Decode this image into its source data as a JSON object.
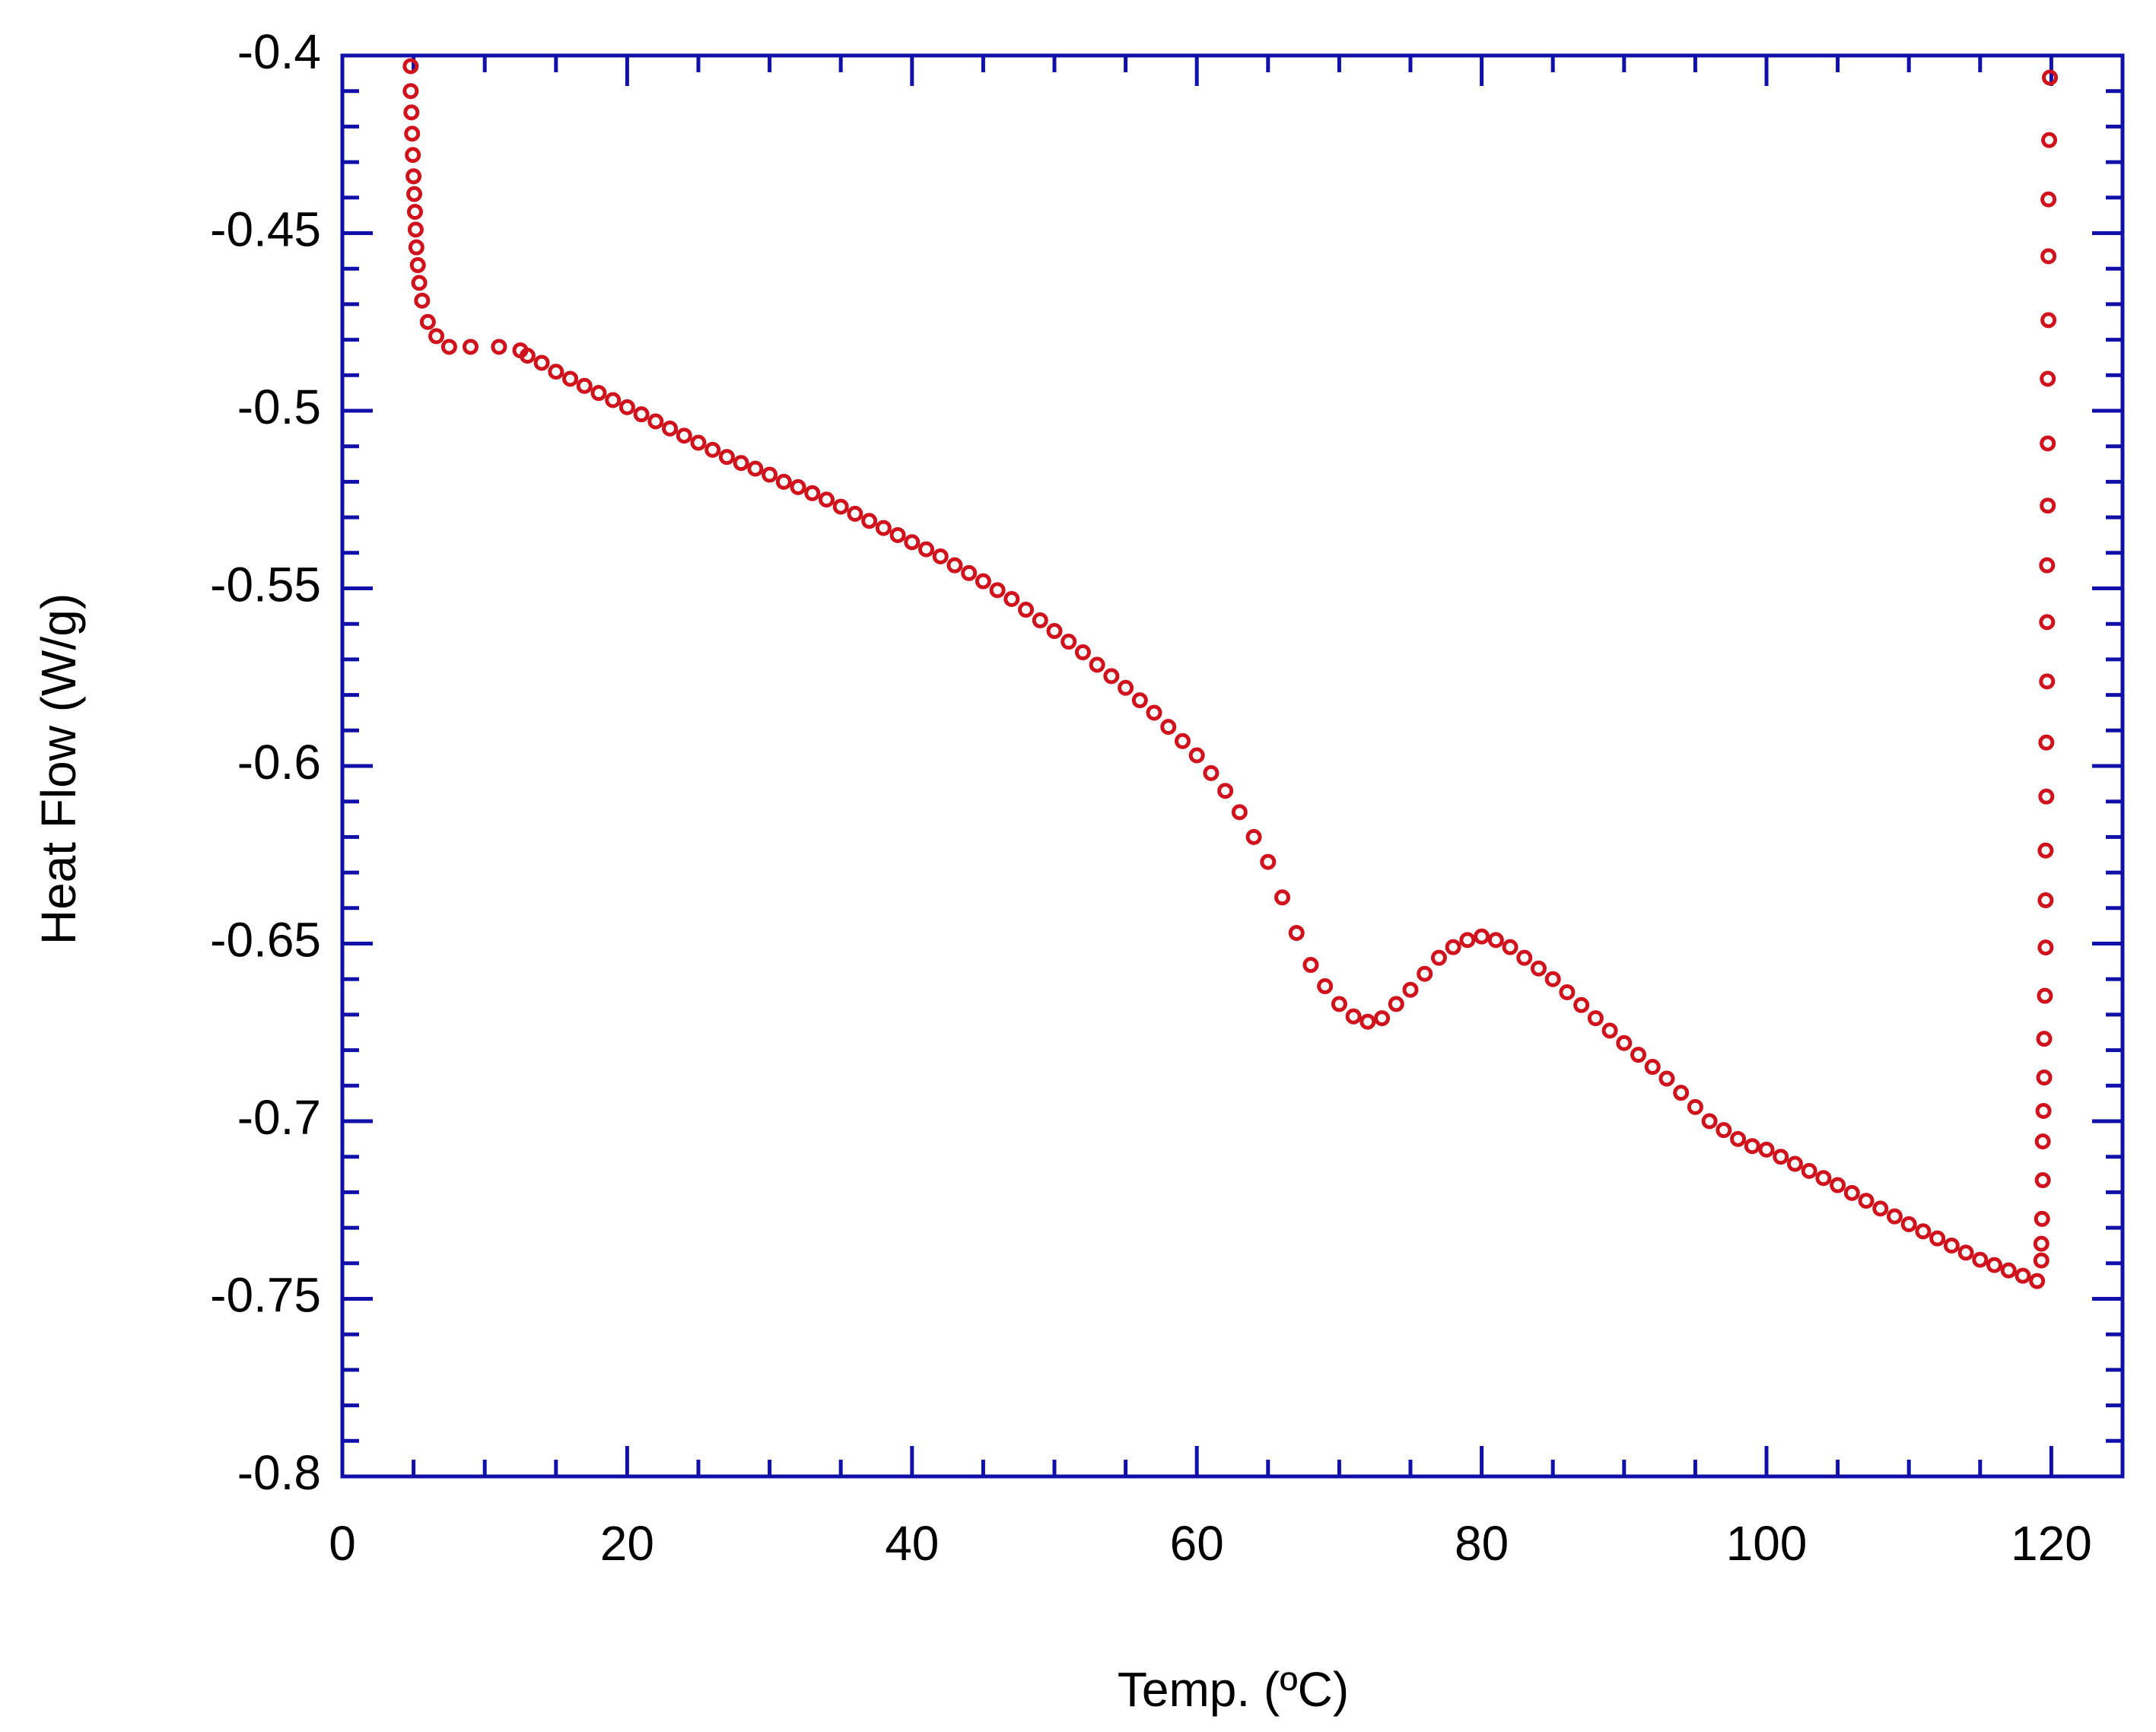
{
  "chart_data": {
    "type": "scatter",
    "xlabel": "Temp. (ºC)",
    "ylabel": "Heat Flow (W/g)",
    "xlim": [
      0,
      125
    ],
    "xticks": [
      0,
      20,
      40,
      60,
      80,
      100,
      120
    ],
    "ylim": [
      -0.8,
      -0.4
    ],
    "yticks": [
      -0.8,
      -0.75,
      -0.7,
      -0.65,
      -0.6,
      -0.55,
      -0.5,
      -0.45,
      -0.4
    ],
    "axis_color": "#1010a8",
    "series": [
      {
        "color": "#d0121c",
        "x": [
          4.8,
          4.8,
          4.85,
          4.9,
          4.95,
          5.0,
          5.05,
          5.1,
          5.15,
          5.2,
          5.3,
          5.4,
          5.6,
          6,
          6.6,
          7.5,
          9,
          11,
          12.5,
          13,
          14,
          15,
          16,
          17,
          18,
          19,
          20,
          21,
          22,
          23,
          24,
          25,
          26,
          27,
          28,
          29,
          30,
          31,
          32,
          33,
          34,
          35,
          36,
          37,
          38,
          39,
          40,
          41,
          42,
          43,
          44,
          45,
          46,
          47,
          48,
          49,
          50,
          51,
          52,
          53,
          54,
          55,
          56,
          57,
          58,
          59,
          60,
          61,
          62,
          63,
          64,
          65,
          66,
          67,
          68,
          69,
          70,
          71,
          72,
          73,
          74,
          75,
          76,
          77,
          78,
          79,
          80,
          81,
          82,
          83,
          84,
          85,
          86,
          87,
          88,
          89,
          90,
          91,
          92,
          93,
          94,
          95,
          96,
          97,
          98,
          99,
          100,
          101,
          102,
          103,
          104,
          105,
          106,
          107,
          108,
          109,
          110,
          111,
          112,
          113,
          114,
          115,
          116,
          117,
          118,
          119,
          119.3,
          119.3,
          119.35,
          119.4,
          119.4,
          119.45,
          119.5,
          119.5,
          119.55,
          119.6,
          119.6,
          119.6,
          119.65,
          119.65,
          119.7,
          119.7,
          119.7,
          119.75,
          119.75,
          119.75,
          119.8,
          119.8,
          119.8,
          119.85,
          119.9
        ],
        "values": [
          -0.403,
          -0.41,
          -0.416,
          -0.422,
          -0.428,
          -0.434,
          -0.439,
          -0.444,
          -0.449,
          -0.454,
          -0.459,
          -0.464,
          -0.469,
          -0.475,
          -0.479,
          -0.482,
          -0.482,
          -0.482,
          -0.483,
          -0.4845,
          -0.4865,
          -0.489,
          -0.491,
          -0.493,
          -0.495,
          -0.497,
          -0.499,
          -0.501,
          -0.503,
          -0.505,
          -0.507,
          -0.509,
          -0.511,
          -0.513,
          -0.5147,
          -0.5163,
          -0.518,
          -0.52,
          -0.5215,
          -0.5232,
          -0.525,
          -0.527,
          -0.529,
          -0.531,
          -0.533,
          -0.535,
          -0.537,
          -0.539,
          -0.541,
          -0.5435,
          -0.5457,
          -0.548,
          -0.5505,
          -0.553,
          -0.556,
          -0.559,
          -0.562,
          -0.565,
          -0.568,
          -0.5715,
          -0.5747,
          -0.578,
          -0.5815,
          -0.585,
          -0.589,
          -0.593,
          -0.597,
          -0.602,
          -0.607,
          -0.613,
          -0.62,
          -0.627,
          -0.637,
          -0.647,
          -0.656,
          -0.662,
          -0.667,
          -0.6705,
          -0.672,
          -0.671,
          -0.667,
          -0.663,
          -0.6585,
          -0.654,
          -0.651,
          -0.649,
          -0.648,
          -0.649,
          -0.651,
          -0.654,
          -0.657,
          -0.66,
          -0.6637,
          -0.6673,
          -0.671,
          -0.6745,
          -0.678,
          -0.6813,
          -0.6847,
          -0.688,
          -0.692,
          -0.696,
          -0.7,
          -0.7025,
          -0.705,
          -0.707,
          -0.708,
          -0.71,
          -0.712,
          -0.714,
          -0.716,
          -0.718,
          -0.7202,
          -0.7224,
          -0.7246,
          -0.7268,
          -0.729,
          -0.731,
          -0.733,
          -0.735,
          -0.737,
          -0.739,
          -0.7405,
          -0.742,
          -0.7435,
          -0.745,
          -0.7392,
          -0.7345,
          -0.7275,
          -0.7166,
          -0.7057,
          -0.6971,
          -0.6877,
          -0.6768,
          -0.6647,
          -0.6511,
          -0.6378,
          -0.6238,
          -0.6086,
          -0.5934,
          -0.5762,
          -0.5595,
          -0.5435,
          -0.5267,
          -0.5092,
          -0.491,
          -0.4745,
          -0.4565,
          -0.4405,
          -0.4238,
          -0.4062
        ]
      }
    ]
  }
}
